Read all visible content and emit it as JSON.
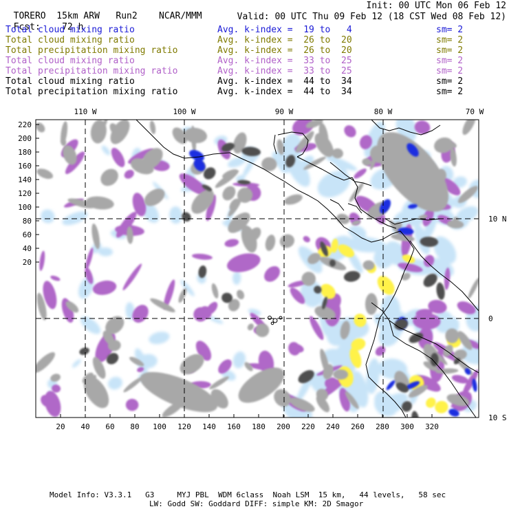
{
  "header": {
    "model": "TORERO",
    "resolution": "15km ARW",
    "run": "Run2",
    "org": "NCAR/MMM",
    "init": "Init: 00 UTC Mon 06 Feb 12",
    "fcst_label": "Fcst:",
    "fcst_value": "72 h",
    "valid": "Valid: 00 UTC Thu 09 Feb 12 (18 CST Wed 08 Feb 12)"
  },
  "legend": [
    {
      "field": "Total cloud mixing ratio",
      "kindex": "Avg. k-index =  19 to   4",
      "sm": "sm= 2",
      "color": "#1a1ad6"
    },
    {
      "field": "Total cloud mixing ratio",
      "kindex": "Avg. k-index =  26 to  20",
      "sm": "sm= 2",
      "color": "#7f7a00"
    },
    {
      "field": "Total precipitation mixing ratio",
      "kindex": "Avg. k-index =  26 to  20",
      "sm": "sm= 2",
      "color": "#7f7a00"
    },
    {
      "field": "Total cloud mixing ratio",
      "kindex": "Avg. k-index =  33 to  25",
      "sm": "sm= 2",
      "color": "#b060c8"
    },
    {
      "field": "Total precipitation mixing ratio",
      "kindex": "Avg. k-index =  33 to  25",
      "sm": "sm= 2",
      "color": "#b060c8"
    },
    {
      "field": "Total cloud mixing ratio",
      "kindex": "Avg. k-index =  44 to  34",
      "sm": "sm= 2",
      "color": "#000000"
    },
    {
      "field": "Total precipitation mixing ratio",
      "kindex": "Avg. k-index =  44 to  34",
      "sm": "sm= 2",
      "color": "#000000"
    }
  ],
  "map": {
    "lon_labels": [
      "110 W",
      "100 W",
      "90 W",
      "80 W",
      "70 W"
    ],
    "lat_labels": [
      "10 N",
      "0",
      "10 S"
    ],
    "y_ticks": [
      "220",
      "200",
      "180",
      "160",
      "140",
      "120",
      "100",
      "80",
      "60",
      "40",
      "20"
    ],
    "x_ticks": [
      "20",
      "40",
      "60",
      "80",
      "100",
      "120",
      "140",
      "160",
      "180",
      "200",
      "220",
      "240",
      "260",
      "280",
      "300",
      "320"
    ],
    "colors": {
      "light_blue": "#c8e4f8",
      "blue": "#1a2fe0",
      "yellow": "#fff24a",
      "violet": "#b068c8",
      "gray": "#a8a8a8",
      "dark_gray": "#505050",
      "coast": "#000000"
    }
  },
  "footer": {
    "line1": "Model Info: V3.3.1   G3     MYJ PBL  WDM 6class  Noah LSM  15 km,   44 levels,   58 sec",
    "line2": "LW: Godd SW: Goddard DIFF: simple KM: 2D Smagor"
  }
}
